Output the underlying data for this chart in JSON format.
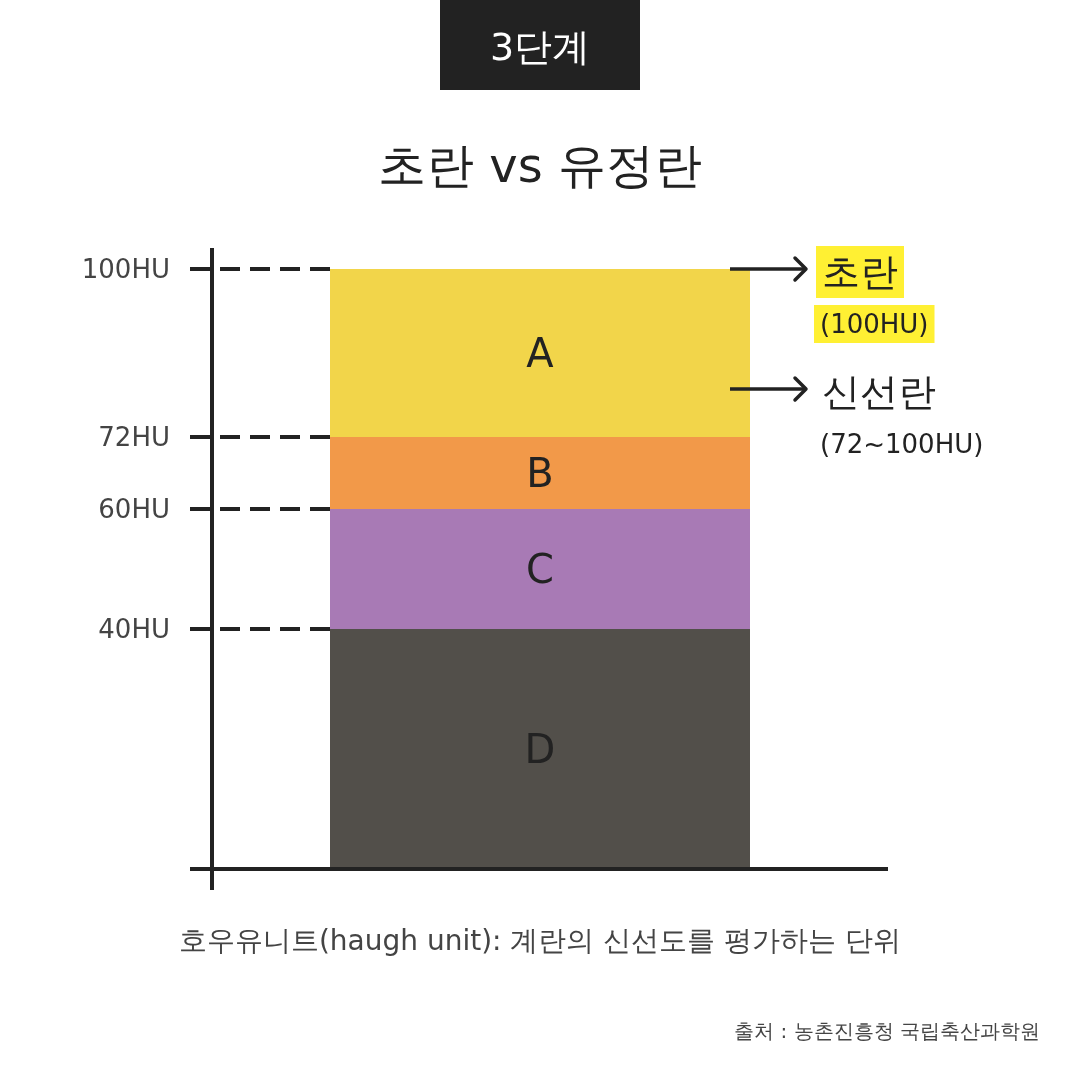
{
  "chart_data": {
    "type": "bar",
    "title": "초란 vs 유정란",
    "subtitle": "3단계",
    "categories": [
      null
    ],
    "series": [
      {
        "name": "D",
        "color": "#524f4a",
        "values": [
          40
        ]
      },
      {
        "name": "C",
        "color": "#a87ab5",
        "values": [
          20
        ]
      },
      {
        "name": "B",
        "color": "#f29949",
        "values": [
          12
        ]
      },
      {
        "name": "A",
        "color": "#f2d54a",
        "values": [
          28
        ]
      }
    ],
    "stacked": true,
    "ylim": [
      -3.5,
      103.5
    ],
    "yticks": [
      {
        "value": 40,
        "label": "40HU"
      },
      {
        "value": 60,
        "label": "60HU"
      },
      {
        "value": 72,
        "label": "72HU"
      },
      {
        "value": 100,
        "label": "100HU"
      }
    ],
    "tick_labels": "y",
    "ref_lines": [
      {
        "axis": "y",
        "value": 100,
        "line_style": "dashed"
      },
      {
        "axis": "y",
        "value": 72,
        "line_style": "dashed"
      },
      {
        "axis": "y",
        "value": 60,
        "line_style": "dashed"
      },
      {
        "axis": "y",
        "value": 40,
        "line_style": "dashed"
      }
    ],
    "annotations": [
      "초란\n(100HU)",
      "신선란\n(72~100HU)",
      "호우유니트(haugh unit): 계란의 신선도를 평가하는 단위",
      "출처 : 농촌진흥청 국립축산과학원"
    ]
  }
}
